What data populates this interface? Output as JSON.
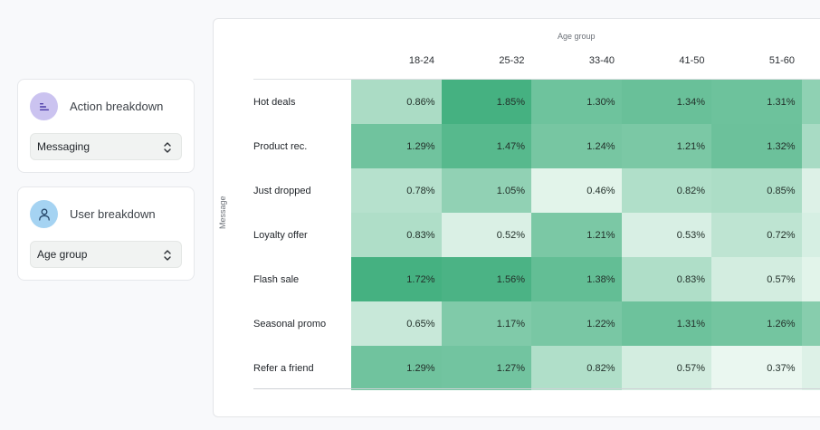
{
  "sidebar": {
    "action_card": {
      "title": "Action breakdown",
      "icon": "bar-list-icon",
      "icon_bg": "#cbc3f0",
      "icon_color": "#4b3aa8",
      "select_value": "Messaging"
    },
    "user_card": {
      "title": "User breakdown",
      "icon": "user-icon",
      "icon_bg": "#a5d3f2",
      "icon_color": "#27476a",
      "select_value": "Age group"
    }
  },
  "colors": {
    "scale_low": "#eaf7f0",
    "scale_high": "#45b181"
  },
  "chart_data": {
    "type": "heatmap",
    "title": "",
    "xlabel": "Age group",
    "ylabel": "Message",
    "categories_x": [
      "18-24",
      "25-32",
      "33-40",
      "41-50",
      "51-60",
      ""
    ],
    "categories_y": [
      "Hot deals",
      "Product rec.",
      "Just dropped",
      "Loyalty offer",
      "Flash sale",
      "Seasonal promo",
      "Refer a friend"
    ],
    "unit": "%",
    "values": [
      [
        0.86,
        1.85,
        1.3,
        1.34,
        1.31,
        null
      ],
      [
        1.29,
        1.47,
        1.24,
        1.21,
        1.32,
        null
      ],
      [
        0.78,
        1.05,
        0.46,
        0.82,
        0.85,
        null
      ],
      [
        0.83,
        0.52,
        1.21,
        0.53,
        0.72,
        null
      ],
      [
        1.72,
        1.56,
        1.38,
        0.83,
        0.57,
        null
      ],
      [
        0.65,
        1.17,
        1.22,
        1.31,
        1.26,
        null
      ],
      [
        1.29,
        1.27,
        0.82,
        0.57,
        0.37,
        null
      ]
    ],
    "labels": [
      [
        "0.86%",
        "1.85%",
        "1.30%",
        "1.34%",
        "1.31%"
      ],
      [
        "1.29%",
        "1.47%",
        "1.24%",
        "1.21%",
        "1.32%"
      ],
      [
        "0.78%",
        "1.05%",
        "0.46%",
        "0.82%",
        "0.85%"
      ],
      [
        "0.83%",
        "0.52%",
        "1.21%",
        "0.53%",
        "0.72%"
      ],
      [
        "1.72%",
        "1.56%",
        "1.38%",
        "0.83%",
        "0.57%"
      ],
      [
        "0.65%",
        "1.17%",
        "1.22%",
        "1.31%",
        "1.26%"
      ],
      [
        "1.29%",
        "1.27%",
        "0.82%",
        "0.57%",
        "0.37%"
      ]
    ],
    "partial_column_shades": [
      0.55,
      0.4,
      0.08,
      0.12,
      0.05,
      0.6,
      0.08
    ]
  }
}
